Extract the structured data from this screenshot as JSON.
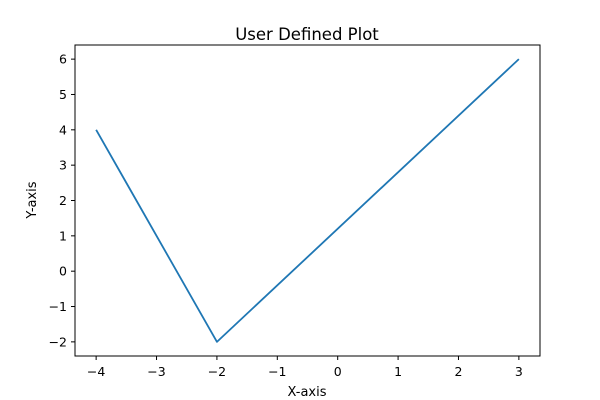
{
  "chart_data": {
    "type": "line",
    "title": "User Defined Plot",
    "xlabel": "X-axis",
    "ylabel": "Y-axis",
    "x": [
      -4,
      -2,
      3
    ],
    "series": [
      {
        "values": [
          4,
          -2,
          6
        ],
        "color": "#1f77b4"
      }
    ],
    "xlim": [
      -4.35,
      3.35
    ],
    "ylim": [
      -2.4,
      6.4
    ],
    "xticks": [
      -4,
      -3,
      -2,
      -1,
      0,
      1,
      2,
      3
    ],
    "xtick_labels": [
      "−4",
      "−3",
      "−2",
      "−1",
      "0",
      "1",
      "2",
      "3"
    ],
    "yticks": [
      -2,
      -1,
      0,
      1,
      2,
      3,
      4,
      5,
      6
    ],
    "ytick_labels": [
      "−2",
      "−1",
      "0",
      "1",
      "2",
      "3",
      "4",
      "5",
      "6"
    ],
    "grid": false,
    "legend": false
  }
}
